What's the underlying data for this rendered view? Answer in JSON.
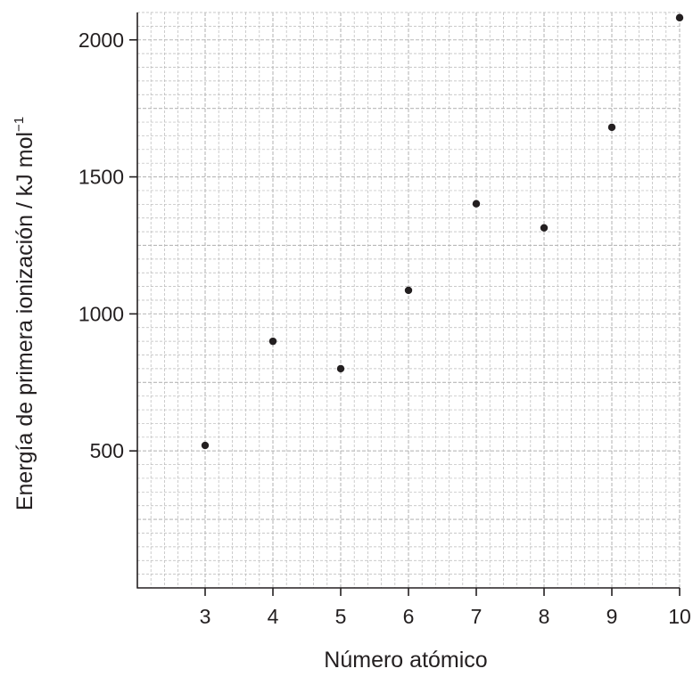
{
  "chart_data": {
    "type": "scatter",
    "title": "",
    "xlabel": "Número atómico",
    "ylabel": "Energía de primera ionización / kJ mol",
    "ylabel_superscript": "−1",
    "xlim": [
      2,
      10
    ],
    "ylim": [
      0,
      2100
    ],
    "x_ticks": [
      3,
      4,
      5,
      6,
      7,
      8,
      9,
      10
    ],
    "y_ticks": [
      500,
      1000,
      1500,
      2000
    ],
    "grid": true,
    "grid_minor_x_step": 0.2,
    "grid_minor_y_step": 50,
    "grid_major_x_step": 1,
    "grid_major_y_step": 250,
    "legend": "none",
    "marker_color": "#231f20",
    "grid_color": "#b8b8b8",
    "series": [
      {
        "points": [
          {
            "x": 3,
            "y": 520
          },
          {
            "x": 4,
            "y": 900
          },
          {
            "x": 5,
            "y": 800
          },
          {
            "x": 6,
            "y": 1086
          },
          {
            "x": 7,
            "y": 1402
          },
          {
            "x": 8,
            "y": 1314
          },
          {
            "x": 9,
            "y": 1681
          },
          {
            "x": 10,
            "y": 2081
          }
        ]
      }
    ]
  }
}
